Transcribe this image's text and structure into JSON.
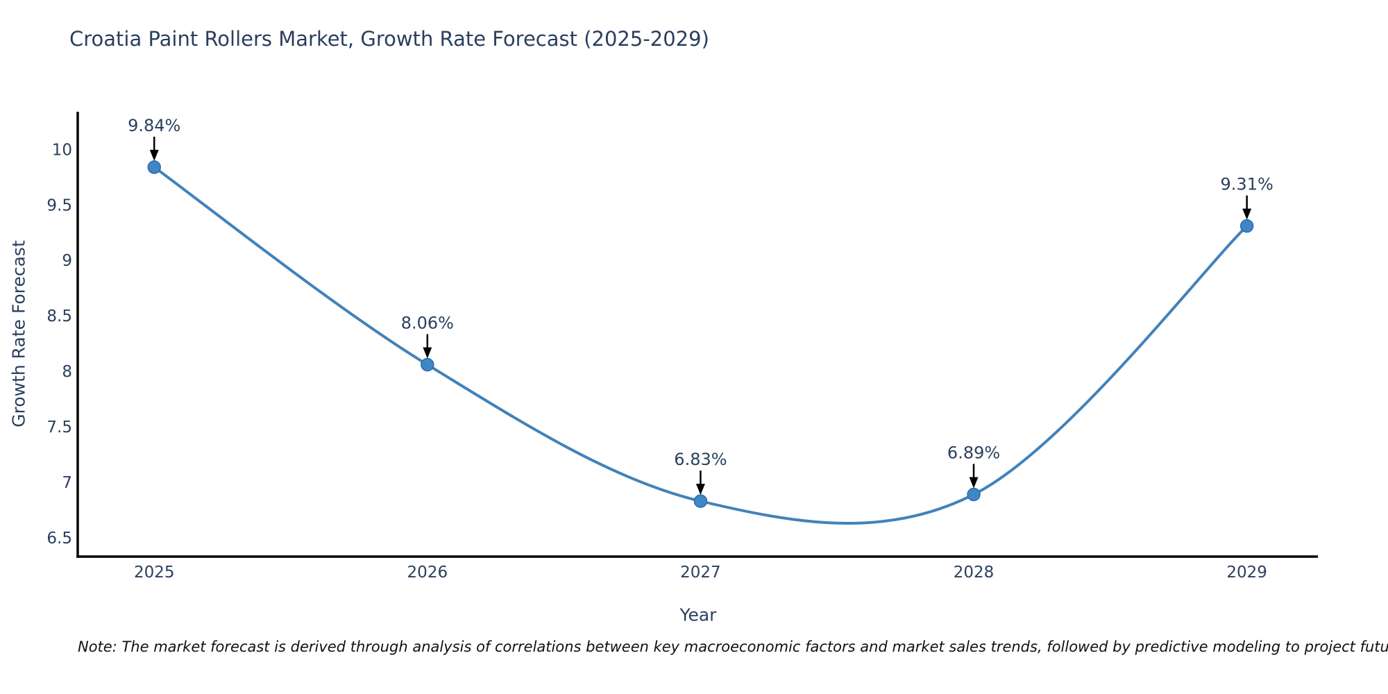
{
  "header": {
    "title": "Croatia Paint Rollers Market, Growth Rate Forecast (2025-2029)"
  },
  "footnote": {
    "text": "Note: The market forecast is derived through analysis of correlations between key macroeconomic factors and market sales trends, followed by predictive modeling to project future sales"
  },
  "chart_data": {
    "type": "line",
    "title": "Croatia Paint Rollers Market, Growth Rate Forecast (2025-2029)",
    "xlabel": "Year",
    "ylabel": "Growth Rate Forecast",
    "x": [
      2025,
      2026,
      2027,
      2028,
      2029
    ],
    "series": [
      {
        "name": "Growth Rate Forecast",
        "values": [
          9.84,
          8.06,
          6.83,
          6.89,
          9.31
        ]
      }
    ],
    "point_labels": [
      "9.84%",
      "8.06%",
      "6.83%",
      "6.89%",
      "9.31%"
    ],
    "xticks": [
      2025,
      2026,
      2027,
      2028,
      2029
    ],
    "yticks": [
      6.5,
      7,
      7.5,
      8,
      8.5,
      9,
      9.5,
      10
    ],
    "xlim": [
      2024.72,
      2029.26
    ],
    "ylim": [
      6.33,
      10.34
    ],
    "grid": false,
    "legend": "none",
    "line_shape": "spline",
    "colors": {
      "line": "#4282b8",
      "marker_fill": "#3f86c6",
      "marker_edge": "#2f6ba8",
      "axis": "#000000",
      "text": "#2a3f5f",
      "annotation_arrow": "#000000"
    }
  }
}
